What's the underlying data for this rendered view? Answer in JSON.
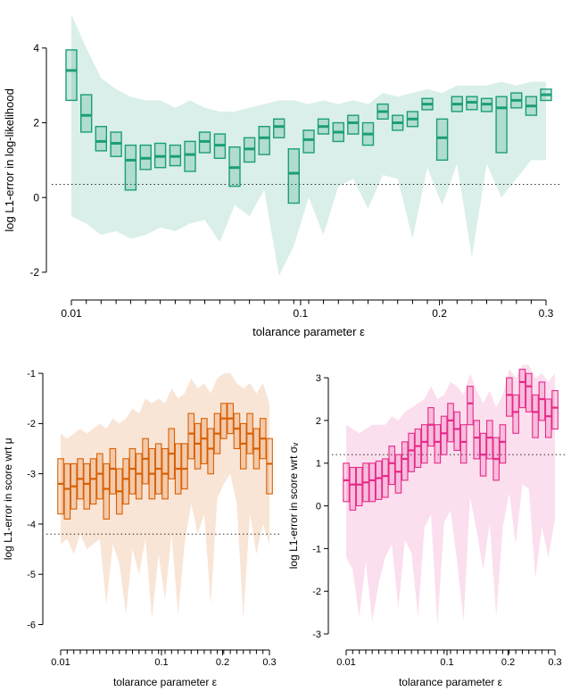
{
  "figure": {
    "background": "#ffffff"
  },
  "chart_data": [
    {
      "id": "log-likelihood",
      "type": "boxplot-band",
      "title": "",
      "xlabel": "tolarance parameter ε",
      "ylabel": "log L1-error in log-likelihood",
      "x_scale": "sqrt",
      "xlim": [
        0.01,
        0.3
      ],
      "ylim": [
        -2.6,
        5.0
      ],
      "y_ticks": [
        -2,
        0,
        2,
        4
      ],
      "x_ticks_labeled": [
        0.01,
        0.1,
        0.2,
        0.3
      ],
      "x_tick_labels": [
        "0.01",
        "0.1",
        "0.2",
        "0.3"
      ],
      "refline": 0.35,
      "color": "#1b9e77",
      "box_fill_opacity": 0.22,
      "band_fill_opacity": 0.16,
      "x": [
        0.01,
        0.013,
        0.0164,
        0.0202,
        0.0243,
        0.0289,
        0.0338,
        0.0392,
        0.0449,
        0.051,
        0.0576,
        0.0645,
        0.0718,
        0.0795,
        0.0875,
        0.096,
        0.1049,
        0.1141,
        0.1238,
        0.1338,
        0.1443,
        0.1551,
        0.1663,
        0.1779,
        0.1899,
        0.2023,
        0.2151,
        0.2283,
        0.2418,
        0.2558,
        0.2702,
        0.2849,
        0.3
      ],
      "median": [
        3.4,
        2.2,
        1.5,
        1.45,
        1.0,
        1.05,
        1.1,
        1.1,
        1.15,
        1.5,
        1.4,
        0.8,
        1.3,
        1.6,
        1.9,
        0.65,
        1.55,
        1.9,
        1.75,
        2.0,
        1.7,
        2.3,
        2.0,
        2.1,
        2.5,
        1.6,
        2.5,
        2.55,
        2.5,
        2.4,
        2.6,
        2.45,
        2.75
      ],
      "q1": [
        2.6,
        1.75,
        1.25,
        1.1,
        0.2,
        0.75,
        0.8,
        0.85,
        0.7,
        1.2,
        1.05,
        0.3,
        0.95,
        1.15,
        1.6,
        -0.15,
        1.2,
        1.7,
        1.5,
        1.7,
        1.4,
        2.1,
        1.8,
        1.9,
        2.35,
        1.0,
        2.3,
        2.35,
        2.3,
        1.2,
        2.4,
        2.2,
        2.6
      ],
      "q3": [
        3.95,
        2.75,
        1.9,
        1.75,
        1.4,
        1.4,
        1.45,
        1.4,
        1.5,
        1.75,
        1.7,
        1.35,
        1.6,
        1.9,
        2.1,
        1.3,
        1.8,
        2.1,
        2.0,
        2.2,
        2.0,
        2.5,
        2.2,
        2.3,
        2.65,
        2.1,
        2.7,
        2.7,
        2.65,
        2.7,
        2.8,
        2.7,
        2.9
      ],
      "band_lo": [
        -0.5,
        -0.7,
        -1.0,
        -0.9,
        -1.1,
        -1.0,
        -0.8,
        -0.9,
        -0.7,
        -0.6,
        -1.2,
        -0.2,
        -0.5,
        0.2,
        -2.1,
        -1.3,
        0.0,
        -1.0,
        0.3,
        0.5,
        -0.3,
        0.6,
        0.5,
        -1.1,
        0.8,
        -0.2,
        0.9,
        -1.6,
        0.9,
        0.0,
        0.5,
        1.0,
        1.0
      ],
      "band_hi": [
        4.9,
        4.0,
        3.2,
        2.9,
        2.7,
        2.6,
        2.6,
        2.4,
        2.6,
        2.4,
        2.3,
        2.3,
        2.4,
        2.5,
        2.6,
        2.6,
        2.5,
        2.6,
        2.5,
        2.6,
        2.5,
        2.8,
        2.7,
        2.8,
        2.9,
        2.8,
        3.0,
        3.0,
        3.0,
        3.1,
        3.0,
        3.1,
        3.1
      ]
    },
    {
      "id": "score-mu",
      "type": "boxplot-band",
      "title": "",
      "xlabel": "tolarance parameter ε",
      "ylabel": "log L1-error in score wrt μ",
      "x_scale": "sqrt",
      "xlim": [
        0.01,
        0.3
      ],
      "ylim": [
        -6.4,
        -0.75
      ],
      "y_ticks": [
        -6,
        -5,
        -4,
        -3,
        -2,
        -1
      ],
      "x_ticks_labeled": [
        0.01,
        0.1,
        0.2,
        0.3
      ],
      "x_tick_labels": [
        "0.01",
        "0.1",
        "0.2",
        "0.3"
      ],
      "refline": -4.2,
      "color": "#d95f02",
      "box_fill_opacity": 0.2,
      "band_fill_opacity": 0.16,
      "x": [
        0.01,
        0.013,
        0.0164,
        0.0202,
        0.0243,
        0.0289,
        0.0338,
        0.0392,
        0.0449,
        0.051,
        0.0576,
        0.0645,
        0.0718,
        0.0795,
        0.0875,
        0.096,
        0.1049,
        0.1141,
        0.1238,
        0.1338,
        0.1443,
        0.1551,
        0.1663,
        0.1779,
        0.1899,
        0.2023,
        0.2151,
        0.2283,
        0.2418,
        0.2558,
        0.2702,
        0.2849,
        0.3
      ],
      "median": [
        -3.2,
        -3.3,
        -3.25,
        -3.1,
        -3.2,
        -3.1,
        -3.0,
        -3.3,
        -2.9,
        -3.35,
        -3.1,
        -2.9,
        -3.0,
        -2.7,
        -3.0,
        -2.9,
        -3.0,
        -2.6,
        -2.9,
        -2.9,
        -2.2,
        -2.4,
        -2.3,
        -2.5,
        -2.2,
        -1.9,
        -1.9,
        -2.1,
        -2.4,
        -2.2,
        -2.5,
        -2.3,
        -2.8
      ],
      "q1": [
        -3.8,
        -3.9,
        -3.7,
        -3.5,
        -3.7,
        -3.6,
        -3.5,
        -3.9,
        -3.4,
        -3.8,
        -3.6,
        -3.4,
        -3.5,
        -3.2,
        -3.5,
        -3.4,
        -3.5,
        -3.1,
        -3.4,
        -3.3,
        -2.7,
        -2.9,
        -2.8,
        -3.0,
        -2.6,
        -2.3,
        -2.2,
        -2.5,
        -2.9,
        -2.6,
        -2.9,
        -2.7,
        -3.4
      ],
      "q3": [
        -2.7,
        -2.8,
        -2.8,
        -2.7,
        -2.8,
        -2.7,
        -2.6,
        -2.8,
        -2.5,
        -2.9,
        -2.7,
        -2.5,
        -2.6,
        -2.3,
        -2.5,
        -2.4,
        -2.5,
        -2.1,
        -2.4,
        -2.4,
        -1.8,
        -2.0,
        -1.9,
        -2.1,
        -1.8,
        -1.6,
        -1.6,
        -1.8,
        -2.0,
        -1.8,
        -2.1,
        -1.9,
        -2.3
      ],
      "band_lo": [
        -4.4,
        -4.3,
        -4.6,
        -4.2,
        -4.5,
        -4.4,
        -4.3,
        -5.6,
        -4.4,
        -4.8,
        -5.8,
        -4.5,
        -5.0,
        -4.3,
        -5.9,
        -4.6,
        -5.5,
        -4.2,
        -5.8,
        -4.4,
        -3.6,
        -4.2,
        -3.8,
        -5.6,
        -3.5,
        -3.2,
        -3.0,
        -3.6,
        -5.9,
        -3.8,
        -4.6,
        -4.0,
        -4.4
      ],
      "band_hi": [
        -2.2,
        -2.3,
        -2.2,
        -2.1,
        -2.2,
        -2.1,
        -2.0,
        -2.1,
        -1.9,
        -2.0,
        -1.9,
        -1.7,
        -1.8,
        -1.5,
        -1.6,
        -1.5,
        -1.6,
        -1.3,
        -1.5,
        -1.4,
        -1.1,
        -1.3,
        -1.2,
        -1.4,
        -1.1,
        -1.0,
        -1.0,
        -1.2,
        -1.3,
        -1.2,
        -1.4,
        -1.2,
        -1.6
      ]
    },
    {
      "id": "score-sigma-v",
      "type": "boxplot-band",
      "title": "",
      "xlabel": "tolarance parameter ε",
      "ylabel": "log L1-error in score wrt σᵥ",
      "x_scale": "sqrt",
      "xlim": [
        0.01,
        0.3
      ],
      "ylim": [
        -3.25,
        3.4
      ],
      "y_ticks": [
        -3,
        -2,
        -1,
        0,
        1,
        2,
        3
      ],
      "x_ticks_labeled": [
        0.01,
        0.1,
        0.2,
        0.3
      ],
      "x_tick_labels": [
        "0.01",
        "0.1",
        "0.2",
        "0.3"
      ],
      "refline": 1.2,
      "color": "#e7298a",
      "box_fill_opacity": 0.18,
      "band_fill_opacity": 0.15,
      "x": [
        0.01,
        0.013,
        0.0164,
        0.0202,
        0.0243,
        0.0289,
        0.0338,
        0.0392,
        0.0449,
        0.051,
        0.0576,
        0.0645,
        0.0718,
        0.0795,
        0.0875,
        0.096,
        0.1049,
        0.1141,
        0.1238,
        0.1338,
        0.1443,
        0.1551,
        0.1663,
        0.1779,
        0.1899,
        0.2023,
        0.2151,
        0.2283,
        0.2418,
        0.2558,
        0.2702,
        0.2849,
        0.3
      ],
      "median": [
        0.6,
        0.5,
        0.5,
        0.55,
        0.6,
        0.65,
        0.7,
        1.0,
        0.8,
        1.1,
        1.3,
        1.4,
        1.5,
        1.9,
        1.5,
        1.7,
        2.0,
        1.8,
        1.5,
        2.4,
        1.6,
        1.2,
        1.6,
        1.1,
        1.5,
        2.6,
        2.2,
        2.9,
        2.8,
        2.2,
        2.5,
        2.1,
        2.3
      ],
      "q1": [
        0.1,
        -0.1,
        0.0,
        0.1,
        0.1,
        0.15,
        0.2,
        0.5,
        0.3,
        0.6,
        0.8,
        0.9,
        1.0,
        1.4,
        1.0,
        1.2,
        1.5,
        1.3,
        1.0,
        1.9,
        1.1,
        0.7,
        1.1,
        0.6,
        1.0,
        2.1,
        1.7,
        2.3,
        2.2,
        1.6,
        2.0,
        1.6,
        1.8
      ],
      "q3": [
        1.0,
        0.9,
        0.9,
        1.0,
        1.0,
        1.05,
        1.1,
        1.4,
        1.2,
        1.5,
        1.7,
        1.8,
        1.9,
        2.3,
        1.9,
        2.1,
        2.4,
        2.2,
        1.9,
        2.8,
        2.0,
        1.7,
        2.0,
        1.6,
        1.9,
        3.0,
        2.6,
        3.2,
        3.1,
        2.6,
        2.9,
        2.5,
        2.7
      ],
      "band_lo": [
        -1.2,
        -1.5,
        -2.6,
        -1.3,
        -2.7,
        -1.8,
        -1.2,
        -0.9,
        -2.4,
        -0.8,
        -1.1,
        -2.6,
        -0.5,
        -0.2,
        -2.8,
        -0.4,
        -0.1,
        -1.3,
        -2.7,
        0.2,
        -0.6,
        -1.5,
        -0.4,
        -2.6,
        -0.5,
        0.3,
        -0.9,
        0.5,
        0.4,
        -1.7,
        -0.5,
        -1.2,
        -0.3
      ],
      "band_hi": [
        1.9,
        1.8,
        1.7,
        1.8,
        1.9,
        1.9,
        1.9,
        2.1,
        2.0,
        2.2,
        2.3,
        2.4,
        2.5,
        2.8,
        2.5,
        2.6,
        2.9,
        2.8,
        2.6,
        3.1,
        2.7,
        2.4,
        2.7,
        2.3,
        2.6,
        3.2,
        3.0,
        3.3,
        3.3,
        3.0,
        3.1,
        2.9,
        3.1
      ]
    }
  ]
}
